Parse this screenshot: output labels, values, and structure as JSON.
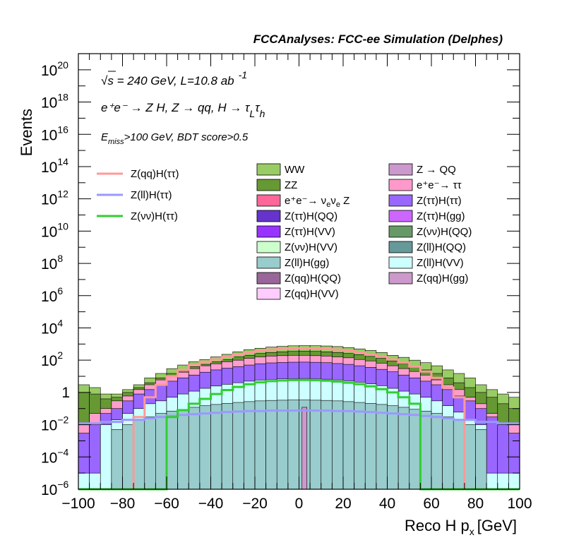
{
  "header": "FCCAnalyses: FCC-ee Simulation (Delphes)",
  "annotations": {
    "line1_sqrt": "√s",
    "line1_rest": " = 240 GeV, L=10.8 ab",
    "line1_sup": "-1",
    "line2": "e⁺e⁻ → Z H, Z → qq, H → τ",
    "line2_sub1": "L",
    "line2_tau2": "τ",
    "line2_sub2": "h",
    "line3_e": "E",
    "line3_sub": "miss",
    "line3_rest": ">100 GeV, BDT score>0.5"
  },
  "chart_data": {
    "type": "histogram",
    "xlabel": "Reco H p",
    "xlabel_sub": "x",
    "xlabel_unit": "[GeV]",
    "ylabel": "Events",
    "xlim": [
      -100,
      100
    ],
    "ylim": [
      1e-06,
      1e+21
    ],
    "yscale": "log",
    "x_ticks": [
      "−100",
      "−80",
      "−60",
      "−40",
      "−20",
      "0",
      "20",
      "40",
      "60",
      "80",
      "100"
    ],
    "y_ticks": [
      {
        "base": "10",
        "exp": "−6",
        "value": 1e-06
      },
      {
        "base": "10",
        "exp": "−4",
        "value": 0.0001
      },
      {
        "base": "10",
        "exp": "−2",
        "value": 0.01
      },
      {
        "base": "1",
        "exp": "",
        "value": 1
      },
      {
        "base": "10",
        "exp": "2",
        "value": 100.0
      },
      {
        "base": "10",
        "exp": "4",
        "value": 10000.0
      },
      {
        "base": "10",
        "exp": "6",
        "value": 1000000.0
      },
      {
        "base": "10",
        "exp": "8",
        "value": 100000000.0
      },
      {
        "base": "10",
        "exp": "10",
        "value": 10000000000.0
      },
      {
        "base": "10",
        "exp": "12",
        "value": 1000000000000.0
      },
      {
        "base": "10",
        "exp": "14",
        "value": 100000000000000.0
      },
      {
        "base": "10",
        "exp": "16",
        "value": 1e+16
      },
      {
        "base": "10",
        "exp": "18",
        "value": 1e+18
      },
      {
        "base": "10",
        "exp": "20",
        "value": 1e+20
      }
    ],
    "stack_envelopes": [
      {
        "color": "#99cc66",
        "values": [
          3,
          2,
          0.8,
          0.8,
          1.5,
          3,
          8,
          15,
          30,
          50,
          80,
          110,
          160,
          230,
          330,
          450,
          550,
          650,
          720,
          780,
          800,
          790,
          760,
          700,
          600,
          500,
          400,
          300,
          200,
          150,
          100,
          70,
          45,
          25,
          15,
          8,
          3,
          1.5,
          0.8,
          0.5
        ]
      },
      {
        "color": "#669933",
        "values": [
          1,
          0.8,
          0.4,
          0.5,
          1,
          2,
          4,
          8,
          15,
          25,
          40,
          55,
          80,
          110,
          160,
          200,
          260,
          300,
          330,
          350,
          360,
          350,
          330,
          300,
          260,
          220,
          170,
          130,
          90,
          60,
          40,
          25,
          15,
          8,
          4,
          2,
          1,
          0.5,
          0.2,
          0.1
        ]
      },
      {
        "color": "#ff9ecc",
        "values": [
          0.01,
          0.05,
          0.1,
          0.3,
          0.6,
          1.5,
          3,
          6,
          10,
          18,
          30,
          45,
          60,
          80,
          100,
          130,
          160,
          180,
          190,
          200,
          200,
          190,
          180,
          160,
          140,
          110,
          90,
          65,
          45,
          30,
          20,
          12,
          6,
          3,
          1.5,
          0.5,
          0.2,
          0.05,
          0.01,
          0.01
        ]
      },
      {
        "color": "#9966ff",
        "values": [
          0.003,
          0.01,
          0.05,
          0.1,
          0.3,
          0.8,
          1.5,
          3,
          5,
          8,
          12,
          18,
          25,
          32,
          40,
          50,
          60,
          68,
          72,
          75,
          76,
          74,
          70,
          62,
          55,
          45,
          36,
          27,
          19,
          12,
          8,
          5,
          3,
          1.5,
          0.6,
          0.3,
          0.1,
          0.03,
          0.01,
          0.003
        ]
      },
      {
        "color": "#ccffff",
        "values": [
          1e-05,
          1e-05,
          0.01,
          0.02,
          0.05,
          0.1,
          0.2,
          0.3,
          0.5,
          0.8,
          1.2,
          1.8,
          2.5,
          3.2,
          4,
          5,
          5.8,
          6.5,
          7,
          7.2,
          7.3,
          7.1,
          6.6,
          6,
          5.2,
          4.3,
          3.4,
          2.6,
          1.8,
          1.2,
          0.8,
          0.5,
          0.3,
          0.15,
          0.06,
          0.02,
          0.01,
          1e-05,
          1e-05,
          1e-05
        ]
      },
      {
        "color": "#99cccc",
        "values": [
          1e-06,
          1e-06,
          1e-06,
          0.005,
          0.01,
          0.02,
          0.03,
          0.05,
          0.07,
          0.09,
          0.12,
          0.15,
          0.18,
          0.21,
          0.24,
          0.27,
          0.3,
          0.32,
          0.33,
          0.34,
          0.34,
          0.33,
          0.32,
          0.3,
          0.27,
          0.24,
          0.21,
          0.18,
          0.15,
          0.12,
          0.09,
          0.07,
          0.05,
          0.03,
          0.02,
          0.01,
          0.005,
          1e-06,
          1e-06,
          1e-06
        ]
      }
    ],
    "line_series": [
      {
        "color": "#ff9999",
        "values": [
          1e-06,
          1e-06,
          1e-06,
          1e-06,
          1e-06,
          0.03,
          0.5,
          3,
          10,
          25,
          50,
          80,
          110,
          160,
          220,
          300,
          380,
          450,
          500,
          540,
          550,
          540,
          500,
          450,
          380,
          300,
          220,
          160,
          110,
          70,
          40,
          20,
          8,
          2,
          0.5,
          1e-06,
          1e-06,
          1e-06,
          1e-06,
          1e-06
        ]
      },
      {
        "color": "#9999ff",
        "values": [
          0.012,
          0.012,
          0.015,
          0.015,
          0.02,
          0.02,
          0.025,
          0.03,
          0.035,
          0.04,
          0.045,
          0.05,
          0.055,
          0.06,
          0.065,
          0.07,
          0.07,
          0.075,
          0.075,
          0.075,
          0.075,
          0.075,
          0.075,
          0.07,
          0.07,
          0.065,
          0.06,
          0.055,
          0.05,
          0.045,
          0.04,
          0.035,
          0.03,
          0.025,
          0.02,
          0.02,
          0.015,
          0.015,
          0.012,
          0.012
        ]
      },
      {
        "color": "#33cc33",
        "values": [
          1e-06,
          1e-06,
          1e-06,
          1e-06,
          1e-06,
          1e-06,
          1e-06,
          1e-06,
          0.03,
          0.08,
          0.2,
          0.4,
          0.8,
          1.4,
          2.2,
          3.2,
          4.2,
          5,
          5.5,
          5.8,
          5.9,
          5.7,
          5.3,
          4.7,
          4,
          3.2,
          2.4,
          1.6,
          1,
          0.5,
          0.2,
          1e-06,
          1e-06,
          1e-06,
          1e-06,
          1e-06,
          1e-06,
          1e-06,
          1e-06,
          1e-06
        ]
      }
    ],
    "narrow_bin": {
      "x": 2,
      "value": 0.12,
      "color": "#cc99cc"
    },
    "legend_lines": [
      {
        "label": "Z(qq)H(ττ)",
        "color": "#ff9999"
      },
      {
        "label": "Z(ll)H(ττ)",
        "color": "#9999ff"
      },
      {
        "label": "Z(νν)H(ττ)",
        "color": "#33cc33"
      }
    ],
    "legend_boxes": [
      {
        "label": "WW",
        "color": "#99cc66"
      },
      {
        "label": "ZZ",
        "color": "#669933"
      },
      {
        "label": "e⁺e⁻→ ν",
        "label_sub": "e",
        "label_mid": "ν",
        "label_sub2": "e",
        "label_end": " Z",
        "color": "#ff6699"
      },
      {
        "label": "Z(ττ)H(QQ)",
        "color": "#6633cc"
      },
      {
        "label": "Z(ττ)H(VV)",
        "color": "#9933ff"
      },
      {
        "label": "Z(νν)H(VV)",
        "color": "#ccffcc"
      },
      {
        "label": "Z(ll)H(gg)",
        "color": "#99cccc"
      },
      {
        "label": "Z(qq)H(QQ)",
        "color": "#996699"
      },
      {
        "label": "Z(qq)H(VV)",
        "color": "#ffccff"
      },
      {
        "label": "Z → QQ",
        "color": "#cc99cc"
      },
      {
        "label": "e⁺e⁻→ ττ",
        "color": "#ff99cc"
      },
      {
        "label": "Z(ττ)H(ττ)",
        "color": "#9966ff"
      },
      {
        "label": "Z(ττ)H(gg)",
        "color": "#cc66ff"
      },
      {
        "label": "Z(νν)H(QQ)",
        "color": "#669966"
      },
      {
        "label": "Z(ll)H(QQ)",
        "color": "#669999"
      },
      {
        "label": "Z(ll)H(VV)",
        "color": "#ccffff"
      },
      {
        "label": "Z(qq)H(gg)",
        "color": "#cc99cc"
      }
    ]
  }
}
